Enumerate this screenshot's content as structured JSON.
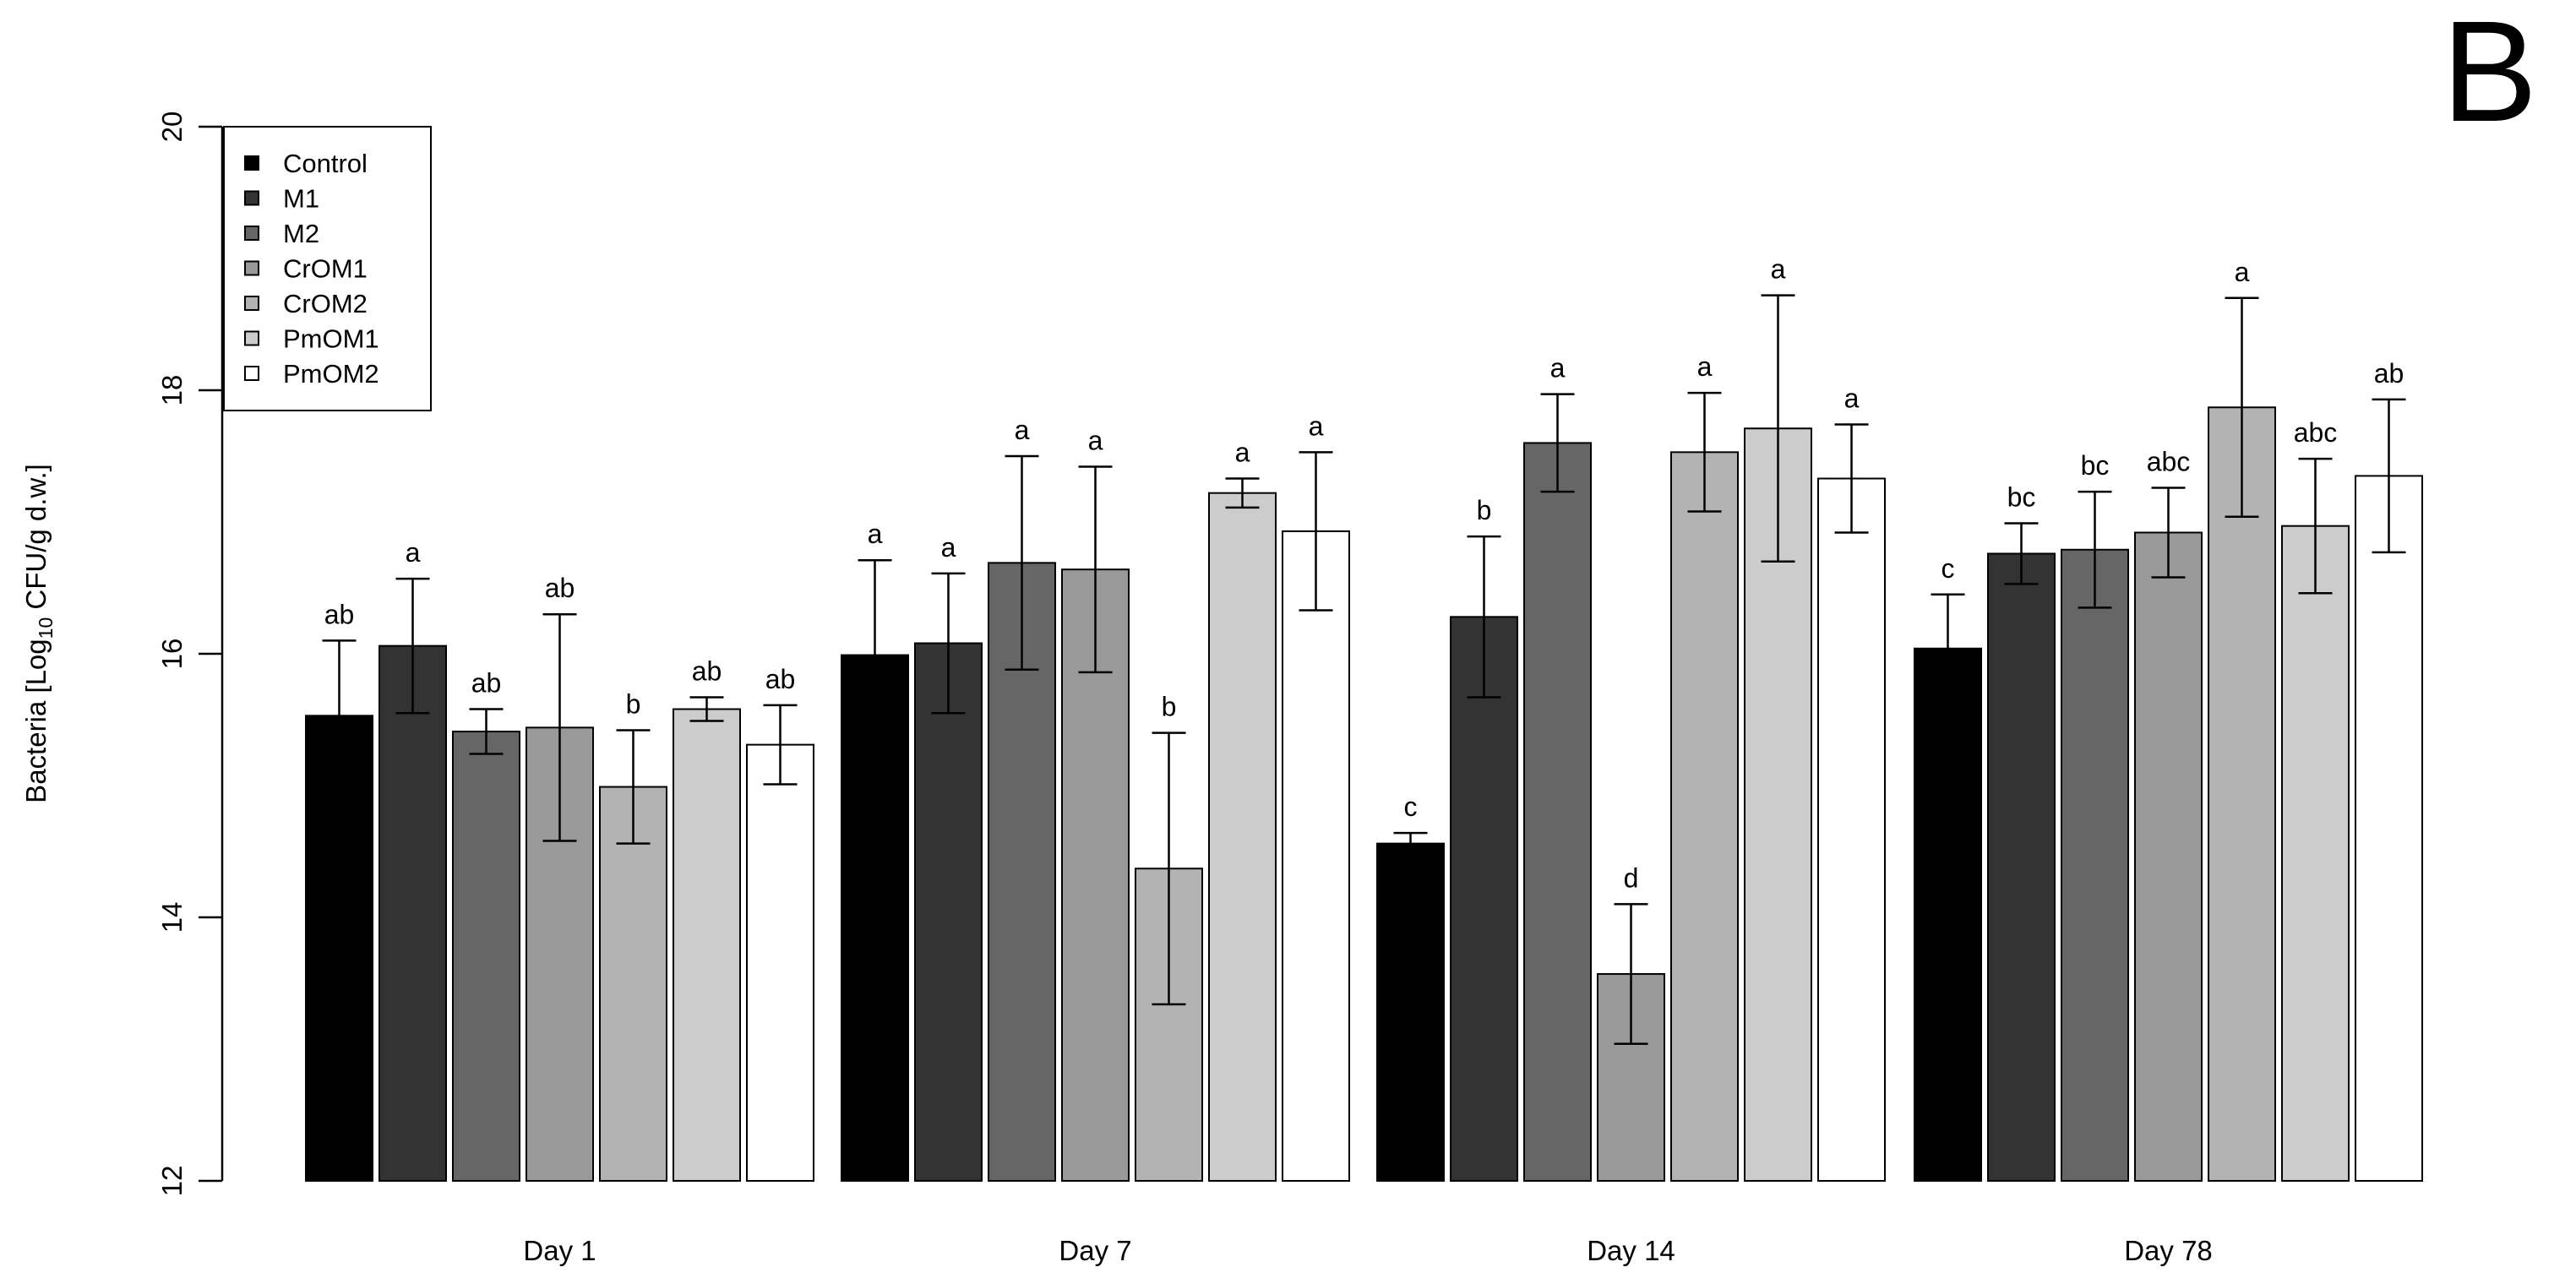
{
  "panel_label": "B",
  "chart_data": {
    "type": "bar",
    "title": "",
    "xlabel": "",
    "ylabel_main": "Bacteria [Log",
    "ylabel_sub": "10",
    "ylabel_tail": " CFU/g d.w.]",
    "ylim": [
      12,
      20
    ],
    "yticks": [
      "12",
      "14",
      "16",
      "18",
      "20"
    ],
    "grid": false,
    "legend_position": "top-left",
    "categories": [
      "Day 1",
      "Day 7",
      "Day 14",
      "Day 78"
    ],
    "series": [
      {
        "name": "Control",
        "color": "#000000",
        "values": [
          15.53,
          15.99,
          14.56,
          16.04
        ],
        "err_high": [
          16.1,
          16.71,
          14.64,
          16.45
        ],
        "err_low": [
          14.95,
          15.29,
          14.5,
          15.63
        ],
        "letters": [
          "ab",
          "a",
          "c",
          "c"
        ]
      },
      {
        "name": "M1",
        "color": "#333333",
        "values": [
          16.06,
          16.08,
          16.28,
          16.76
        ],
        "err_high": [
          16.57,
          16.61,
          16.89,
          16.99
        ],
        "err_low": [
          15.55,
          15.55,
          15.67,
          16.53
        ],
        "letters": [
          "a",
          "a",
          "b",
          "bc"
        ]
      },
      {
        "name": "M2",
        "color": "#666666",
        "values": [
          15.41,
          16.69,
          17.6,
          16.79
        ],
        "err_high": [
          15.58,
          17.5,
          17.97,
          17.23
        ],
        "err_low": [
          15.24,
          15.88,
          17.23,
          16.35
        ],
        "letters": [
          "ab",
          "a",
          "a",
          "bc"
        ]
      },
      {
        "name": "CrOM1",
        "color": "#999999",
        "values": [
          15.44,
          16.64,
          13.57,
          16.92
        ],
        "err_high": [
          16.3,
          17.42,
          14.1,
          17.26
        ],
        "err_low": [
          14.58,
          15.86,
          13.04,
          16.58
        ],
        "letters": [
          "ab",
          "a",
          "d",
          "abc"
        ]
      },
      {
        "name": "CrOM2",
        "color": "#b3b3b3",
        "values": [
          14.99,
          14.37,
          17.53,
          17.87
        ],
        "err_high": [
          15.42,
          15.4,
          17.98,
          18.7
        ],
        "err_low": [
          14.56,
          13.34,
          17.08,
          17.04
        ],
        "letters": [
          "b",
          "b",
          "a",
          "a"
        ]
      },
      {
        "name": "PmOM1",
        "color": "#cccccc",
        "values": [
          15.58,
          17.22,
          17.71,
          16.97
        ],
        "err_high": [
          15.67,
          17.33,
          18.72,
          17.48
        ],
        "err_low": [
          15.49,
          17.11,
          16.7,
          16.46
        ],
        "letters": [
          "ab",
          "a",
          "a",
          "abc"
        ]
      },
      {
        "name": "PmOM2",
        "color": "#ffffff",
        "values": [
          15.31,
          16.93,
          17.33,
          17.35
        ],
        "err_high": [
          15.61,
          17.53,
          17.74,
          17.93
        ],
        "err_low": [
          15.01,
          16.33,
          16.92,
          16.77
        ],
        "letters": [
          "ab",
          "a",
          "a",
          "ab"
        ]
      }
    ]
  }
}
